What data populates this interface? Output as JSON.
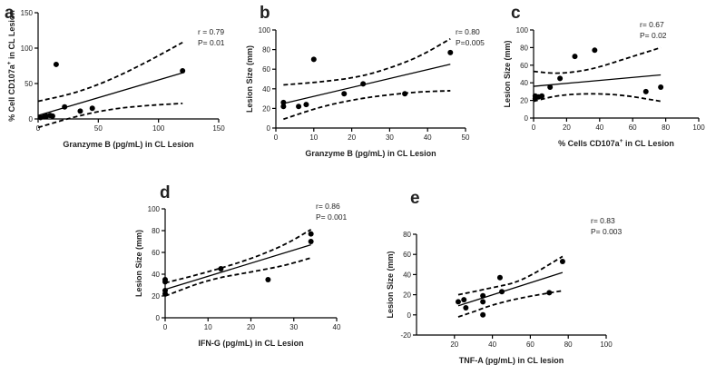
{
  "chart_data": [
    {
      "id": "a",
      "type": "scatter",
      "panel_label": "a",
      "xlabel": "Granzyme B (pg/mL) in CL Lesion",
      "ylabel": "% Cell CD107a+ in CL Lesion",
      "ylabel_main": "% Cell CD107a",
      "ylabel_sup": "+",
      "ylabel_tail": " in CL  Lesion",
      "xlim": [
        0,
        150
      ],
      "ylim": [
        0,
        150
      ],
      "xticks": [
        0,
        50,
        100,
        150
      ],
      "yticks": [
        0,
        50,
        100,
        150
      ],
      "stats": [
        "r = 0.79",
        "P= 0.01"
      ],
      "points": [
        [
          2,
          2
        ],
        [
          5,
          3
        ],
        [
          7,
          4
        ],
        [
          10,
          5
        ],
        [
          12,
          4
        ],
        [
          15,
          77
        ],
        [
          22,
          17
        ],
        [
          35,
          11
        ],
        [
          45,
          15
        ],
        [
          120,
          68
        ]
      ],
      "fit": {
        "x": [
          0,
          120
        ],
        "y": [
          5,
          65
        ]
      },
      "ci_upper": {
        "x": [
          0,
          30,
          60,
          90,
          120
        ],
        "y": [
          25,
          36,
          55,
          80,
          108
        ]
      },
      "ci_lower": {
        "x": [
          0,
          30,
          60,
          90,
          120
        ],
        "y": [
          -12,
          3,
          14,
          19,
          22
        ]
      }
    },
    {
      "id": "b",
      "type": "scatter",
      "panel_label": "b",
      "xlabel": "Granzyme B (pg/mL) in CL Lesion",
      "ylabel": "Lesion Size (mm)",
      "xlim": [
        0,
        50
      ],
      "ylim": [
        0,
        100
      ],
      "xticks": [
        0,
        10,
        20,
        30,
        40,
        50
      ],
      "yticks": [
        0,
        20,
        40,
        60,
        80,
        100
      ],
      "stats": [
        "r= 0.80",
        "P=0.005"
      ],
      "points": [
        [
          2,
          22
        ],
        [
          2,
          26
        ],
        [
          6,
          22
        ],
        [
          8,
          24
        ],
        [
          10,
          70
        ],
        [
          18,
          35
        ],
        [
          23,
          45
        ],
        [
          34,
          35
        ],
        [
          46,
          77
        ]
      ],
      "fit": {
        "x": [
          2,
          46
        ],
        "y": [
          25,
          65
        ]
      },
      "ci_upper": {
        "x": [
          2,
          12,
          22,
          30,
          38,
          46
        ],
        "y": [
          44,
          47,
          52,
          61,
          73,
          91
        ]
      },
      "ci_lower": {
        "x": [
          2,
          12,
          22,
          30,
          38,
          46
        ],
        "y": [
          9,
          22,
          30,
          34,
          37,
          38
        ]
      }
    },
    {
      "id": "c",
      "type": "scatter",
      "panel_label": "c",
      "xlabel": "% Cells CD107a+ in CL Lesion",
      "xlabel_main": "%  Cells CD107a",
      "xlabel_sup": "+",
      "xlabel_tail": " in CL Lesion",
      "ylabel": "Lesion Size (mm)",
      "xlim": [
        0,
        100
      ],
      "ylim": [
        0,
        100
      ],
      "xticks": [
        0,
        20,
        40,
        60,
        80,
        100
      ],
      "yticks": [
        0,
        20,
        40,
        60,
        80,
        100
      ],
      "stats": [
        "r= 0.67",
        "P= 0.02"
      ],
      "points": [
        [
          1,
          22
        ],
        [
          1,
          25
        ],
        [
          3,
          24
        ],
        [
          5,
          25
        ],
        [
          10,
          35
        ],
        [
          16,
          45
        ],
        [
          25,
          70
        ],
        [
          37,
          77
        ],
        [
          68,
          30
        ],
        [
          77,
          35
        ]
      ],
      "fit": {
        "x": [
          0,
          77
        ],
        "y": [
          36,
          49
        ]
      },
      "ci_upper": {
        "x": [
          0,
          15,
          35,
          55,
          77
        ],
        "y": [
          53,
          50,
          55,
          67,
          80
        ]
      },
      "ci_lower": {
        "x": [
          0,
          15,
          35,
          55,
          77
        ],
        "y": [
          19,
          26,
          28,
          26,
          19
        ]
      }
    },
    {
      "id": "d",
      "type": "scatter",
      "panel_label": "d",
      "xlabel": "IFN-G (pg/mL) in CL Lesion",
      "ylabel": "Lesion Size (mm)",
      "xlim": [
        0,
        40
      ],
      "ylim": [
        0,
        100
      ],
      "xticks": [
        0,
        10,
        20,
        30,
        40
      ],
      "yticks": [
        0,
        20,
        40,
        60,
        80,
        100
      ],
      "stats": [
        "r= 0.86",
        "P= 0.001"
      ],
      "points": [
        [
          0,
          22
        ],
        [
          0,
          25
        ],
        [
          0,
          33
        ],
        [
          0,
          35
        ],
        [
          13,
          45
        ],
        [
          24,
          35
        ],
        [
          34,
          70
        ],
        [
          34,
          77
        ]
      ],
      "fit": {
        "x": [
          0,
          34
        ],
        "y": [
          26,
          67
        ]
      },
      "ci_upper": {
        "x": [
          0,
          10,
          20,
          28,
          34
        ],
        "y": [
          32,
          42,
          54,
          67,
          81
        ]
      },
      "ci_lower": {
        "x": [
          0,
          10,
          20,
          28,
          34
        ],
        "y": [
          20,
          35,
          42,
          48,
          55
        ]
      }
    },
    {
      "id": "e",
      "type": "scatter",
      "panel_label": "e",
      "xlabel": "TNF-A (pg/mL) in  CL lesion",
      "ylabel": "Lesion Size (mm)",
      "xlim": [
        0,
        100
      ],
      "ylim": [
        -20,
        80
      ],
      "xticks": [
        20,
        40,
        60,
        80,
        100
      ],
      "yticks": [
        -20,
        0,
        20,
        40,
        60,
        80
      ],
      "stats": [
        "r= 0.83",
        "P= 0.003"
      ],
      "points": [
        [
          22,
          13
        ],
        [
          25,
          15
        ],
        [
          26,
          7
        ],
        [
          35,
          19
        ],
        [
          35,
          13
        ],
        [
          35,
          0
        ],
        [
          44,
          37
        ],
        [
          45,
          23
        ],
        [
          70,
          22
        ],
        [
          77,
          53
        ]
      ],
      "fit": {
        "x": [
          22,
          77
        ],
        "y": [
          9,
          42
        ]
      },
      "ci_upper": {
        "x": [
          22,
          30,
          40,
          55,
          77
        ],
        "y": [
          20,
          23,
          27,
          33,
          58
        ]
      },
      "ci_lower": {
        "x": [
          22,
          30,
          40,
          55,
          77
        ],
        "y": [
          -2,
          3,
          10,
          17,
          24
        ]
      }
    }
  ]
}
